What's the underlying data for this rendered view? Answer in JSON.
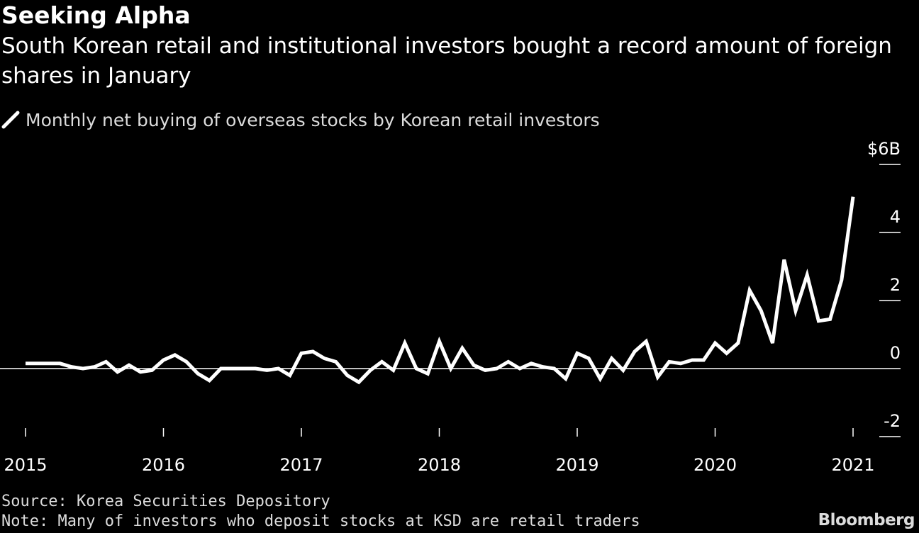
{
  "header": {
    "brand": "Seeking Alpha",
    "title": "South Korean retail and institutional investors bought a record amount of foreign shares in January"
  },
  "legend": {
    "label": "Monthly net buying of overseas stocks by Korean retail investors"
  },
  "footer": {
    "source": "Source: Korea Securities Depository",
    "note": "Note: Many of investors who deposit stocks at KSD are retail traders",
    "logo": "Bloomberg"
  },
  "colors": {
    "background": "#000000",
    "line": "#ffffff",
    "axis": "#ffffff",
    "muted_text": "#dcdcdc"
  },
  "chart_data": {
    "type": "line",
    "title": "South Korean retail and institutional investors bought a record amount of foreign shares in January",
    "xlabel": "",
    "ylabel": "",
    "unit": "$ billions",
    "start": "2015-01",
    "x_ticks": [
      "2015",
      "2016",
      "2017",
      "2018",
      "2019",
      "2020",
      "2021"
    ],
    "y_ticks": [
      {
        "value": 6,
        "label": "$6B"
      },
      {
        "value": 4,
        "label": "4"
      },
      {
        "value": 2,
        "label": "2"
      },
      {
        "value": 0,
        "label": "0"
      },
      {
        "value": -2,
        "label": "-2"
      }
    ],
    "ylim": [
      -2,
      6
    ],
    "y_axis_position": "right",
    "grid": false,
    "legend_position": "top-left",
    "series": [
      {
        "name": "Monthly net buying of overseas stocks by Korean retail investors",
        "x": [
          "2015-01",
          "2015-02",
          "2015-03",
          "2015-04",
          "2015-05",
          "2015-06",
          "2015-07",
          "2015-08",
          "2015-09",
          "2015-10",
          "2015-11",
          "2015-12",
          "2016-01",
          "2016-02",
          "2016-03",
          "2016-04",
          "2016-05",
          "2016-06",
          "2016-07",
          "2016-08",
          "2016-09",
          "2016-10",
          "2016-11",
          "2016-12",
          "2017-01",
          "2017-02",
          "2017-03",
          "2017-04",
          "2017-05",
          "2017-06",
          "2017-07",
          "2017-08",
          "2017-09",
          "2017-10",
          "2017-11",
          "2017-12",
          "2018-01",
          "2018-02",
          "2018-03",
          "2018-04",
          "2018-05",
          "2018-06",
          "2018-07",
          "2018-08",
          "2018-09",
          "2018-10",
          "2018-11",
          "2018-12",
          "2019-01",
          "2019-02",
          "2019-03",
          "2019-04",
          "2019-05",
          "2019-06",
          "2019-07",
          "2019-08",
          "2019-09",
          "2019-10",
          "2019-11",
          "2019-12",
          "2020-01",
          "2020-02",
          "2020-03",
          "2020-04",
          "2020-05",
          "2020-06",
          "2020-07",
          "2020-08",
          "2020-09",
          "2020-10",
          "2020-11",
          "2020-12",
          "2021-01"
        ],
        "values": [
          0.15,
          0.15,
          0.15,
          0.15,
          0.05,
          0.0,
          0.05,
          0.2,
          -0.1,
          0.1,
          -0.1,
          -0.05,
          0.25,
          0.4,
          0.2,
          -0.15,
          -0.35,
          0.0,
          0.0,
          0.0,
          0.0,
          -0.05,
          0.0,
          -0.2,
          0.45,
          0.5,
          0.3,
          0.2,
          -0.2,
          -0.4,
          -0.05,
          0.2,
          -0.05,
          0.75,
          0.0,
          -0.15,
          0.8,
          0.0,
          0.6,
          0.1,
          -0.05,
          0.0,
          0.2,
          0.0,
          0.15,
          0.05,
          0.0,
          -0.3,
          0.45,
          0.3,
          -0.3,
          0.3,
          -0.05,
          0.5,
          0.8,
          -0.25,
          0.2,
          0.15,
          0.25,
          0.25,
          0.75,
          0.45,
          0.75,
          2.3,
          1.7,
          0.75,
          3.2,
          1.7,
          2.75,
          1.4,
          1.45,
          2.6,
          5.05
        ]
      }
    ]
  }
}
